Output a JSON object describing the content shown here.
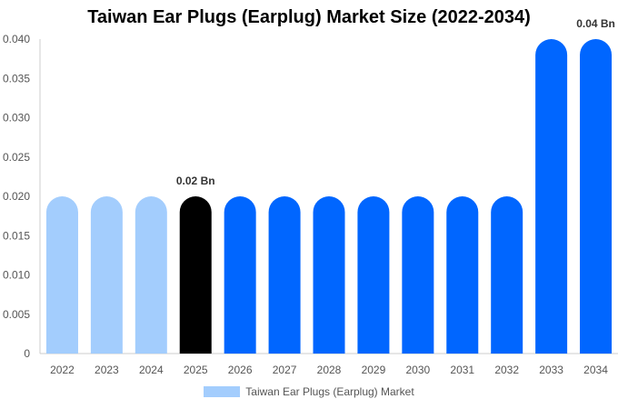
{
  "chart_data": {
    "type": "bar",
    "title": "Taiwan Ear Plugs (Earplug) Market Size (2022-2034)",
    "categories": [
      "2022",
      "2023",
      "2024",
      "2025",
      "2026",
      "2027",
      "2028",
      "2029",
      "2030",
      "2031",
      "2032",
      "2033",
      "2034"
    ],
    "series": [
      {
        "name": "Taiwan Ear Plugs (Earplug) Market",
        "values": [
          0.02,
          0.02,
          0.02,
          0.02,
          0.02,
          0.02,
          0.02,
          0.02,
          0.02,
          0.02,
          0.02,
          0.04,
          0.04
        ]
      }
    ],
    "y_ticks": [
      "0",
      "0.005",
      "0.010",
      "0.015",
      "0.020",
      "0.025",
      "0.030",
      "0.035",
      "0.040"
    ],
    "ylim": [
      0,
      0.04
    ],
    "data_labels": [
      {
        "category": "2025",
        "text": "0.02 Bn"
      },
      {
        "category": "2034",
        "text": "0.04 Bn"
      }
    ],
    "bar_colors": {
      "historical": "#a3cdfd",
      "current": "#000000",
      "forecast": "#0066ff"
    },
    "legend_position": "bottom",
    "grid": false
  }
}
